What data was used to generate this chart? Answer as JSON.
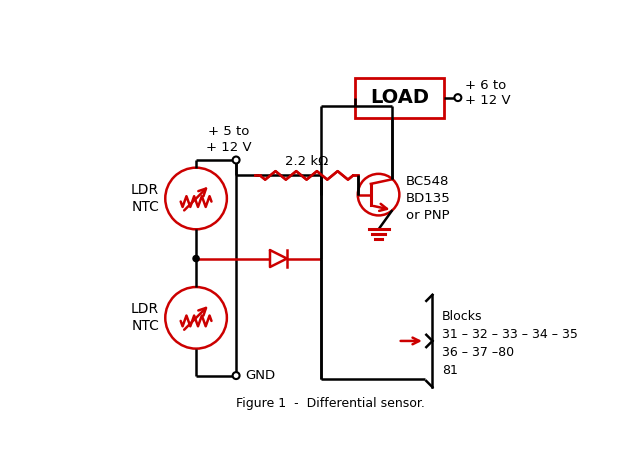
{
  "bg_color": "#ffffff",
  "line_color": "#000000",
  "red_color": "#cc0000",
  "title": "Figure 1  -  Differential sensor.",
  "labels": {
    "ldr_ntc_top": "LDR\nNTC",
    "ldr_ntc_bot": "LDR\nNTC",
    "voltage_top": "+ 5 to\n+ 12 V",
    "gnd": "GND",
    "resistor": "2.2 kΩ",
    "transistor": "BC548\nBD135\nor PNP",
    "load": "LOAD",
    "supply": "+ 6 to\n+ 12 V",
    "blocks": "Blocks\n31 – 32 – 33 – 34 – 35\n36 – 37 –80\n81"
  }
}
